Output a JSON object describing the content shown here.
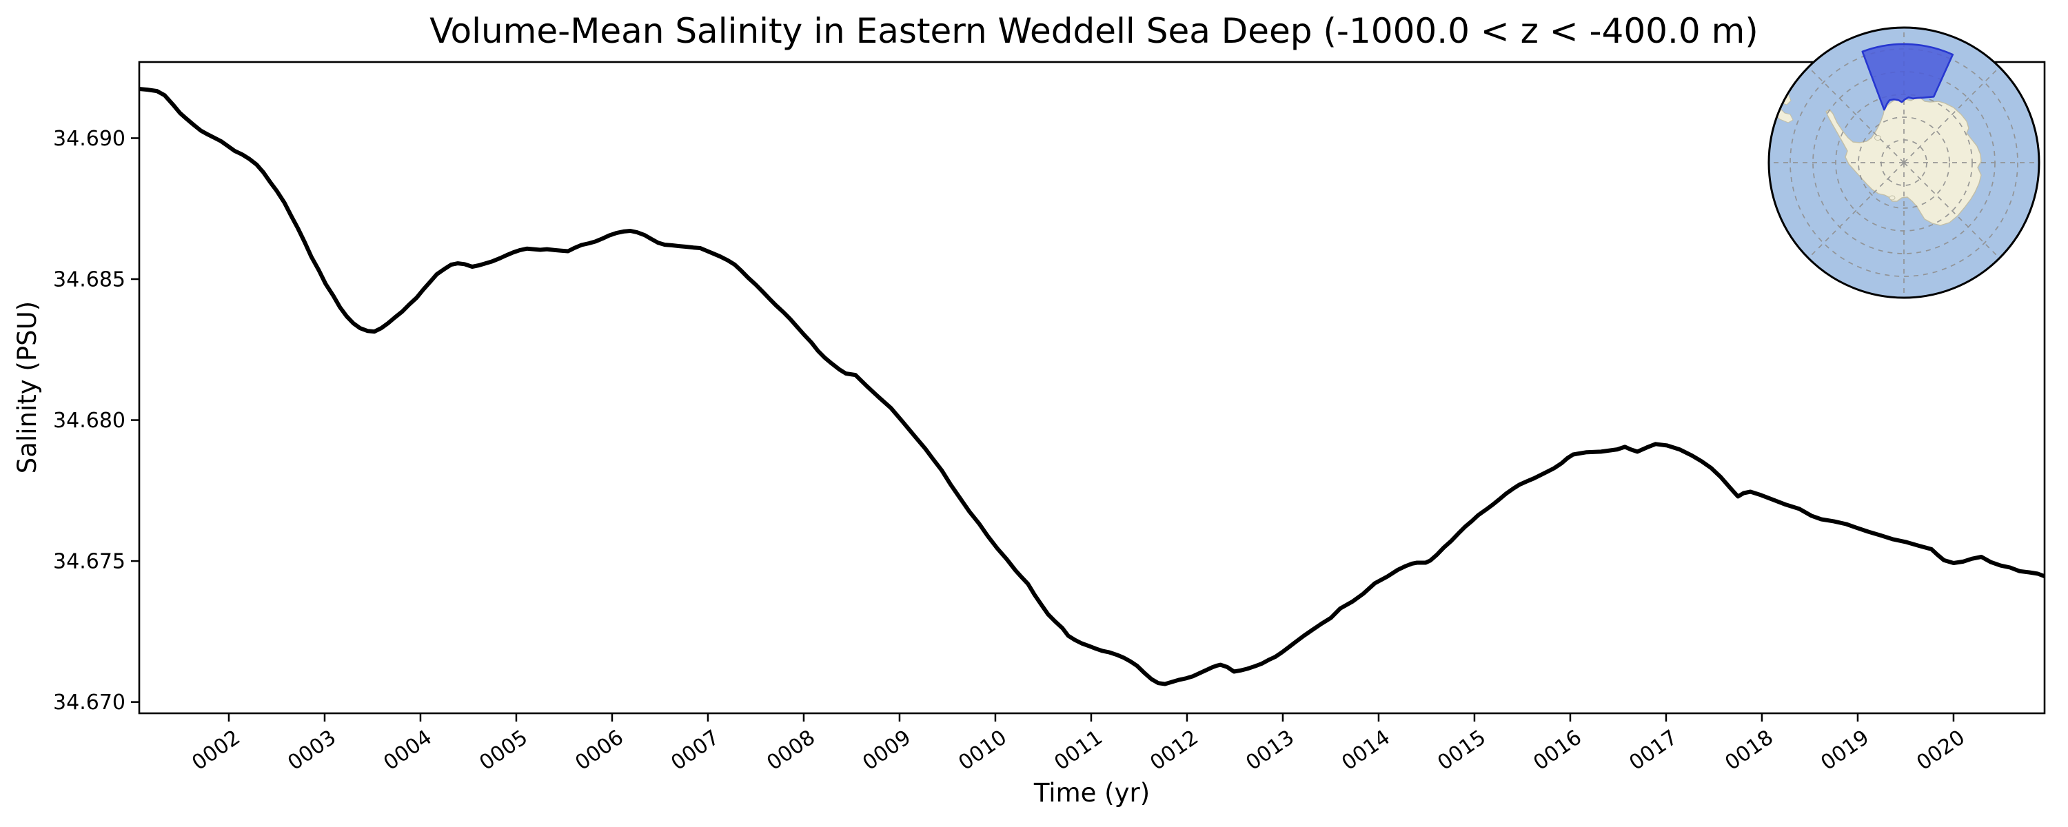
{
  "chart_data": {
    "type": "line",
    "title": "Volume-Mean Salinity in Eastern Weddell Sea Deep (-1000.0 < z < -400.0 m)",
    "xlabel": "Time (yr)",
    "ylabel": "Salinity (PSU)",
    "grid": false,
    "legend": "none",
    "xlim": [
      1.065,
      20.95
    ],
    "ylim": [
      34.6696,
      34.6927
    ],
    "x_ticks": [
      {
        "value": 2,
        "label": "0002"
      },
      {
        "value": 3,
        "label": "0003"
      },
      {
        "value": 4,
        "label": "0004"
      },
      {
        "value": 5,
        "label": "0005"
      },
      {
        "value": 6,
        "label": "0006"
      },
      {
        "value": 7,
        "label": "0007"
      },
      {
        "value": 8,
        "label": "0008"
      },
      {
        "value": 9,
        "label": "0009"
      },
      {
        "value": 10,
        "label": "0010"
      },
      {
        "value": 11,
        "label": "0011"
      },
      {
        "value": 12,
        "label": "0012"
      },
      {
        "value": 13,
        "label": "0013"
      },
      {
        "value": 14,
        "label": "0014"
      },
      {
        "value": 15,
        "label": "0015"
      },
      {
        "value": 16,
        "label": "0016"
      },
      {
        "value": 17,
        "label": "0017"
      },
      {
        "value": 18,
        "label": "0018"
      },
      {
        "value": 19,
        "label": "0019"
      },
      {
        "value": 20,
        "label": "0020"
      }
    ],
    "y_ticks": [
      {
        "value": 34.67,
        "label": "34.670"
      },
      {
        "value": 34.675,
        "label": "34.675"
      },
      {
        "value": 34.68,
        "label": "34.680"
      },
      {
        "value": 34.685,
        "label": "34.685"
      },
      {
        "value": 34.69,
        "label": "34.690"
      }
    ],
    "series": [
      {
        "name": "volume-mean salinity",
        "color": "#000000",
        "line_width": 6,
        "points": [
          [
            1.06,
            34.69175
          ],
          [
            1.15,
            34.69172
          ],
          [
            1.25,
            34.69167
          ],
          [
            1.33,
            34.69152
          ],
          [
            1.42,
            34.69118
          ],
          [
            1.49,
            34.69089
          ],
          [
            1.56,
            34.69068
          ],
          [
            1.63,
            34.69048
          ],
          [
            1.71,
            34.69026
          ],
          [
            1.78,
            34.69013
          ],
          [
            1.85,
            34.69001
          ],
          [
            1.92,
            34.68989
          ],
          [
            1.99,
            34.68972
          ],
          [
            2.06,
            34.68955
          ],
          [
            2.14,
            34.68942
          ],
          [
            2.21,
            34.68927
          ],
          [
            2.29,
            34.68906
          ],
          [
            2.36,
            34.68879
          ],
          [
            2.43,
            34.68845
          ],
          [
            2.5,
            34.68813
          ],
          [
            2.58,
            34.68771
          ],
          [
            2.65,
            34.68725
          ],
          [
            2.72,
            34.68681
          ],
          [
            2.79,
            34.68632
          ],
          [
            2.86,
            34.6858
          ],
          [
            2.94,
            34.68531
          ],
          [
            3.01,
            34.68483
          ],
          [
            3.09,
            34.68441
          ],
          [
            3.16,
            34.684
          ],
          [
            3.23,
            34.68368
          ],
          [
            3.3,
            34.68343
          ],
          [
            3.37,
            34.68326
          ],
          [
            3.45,
            34.68316
          ],
          [
            3.52,
            34.68314
          ],
          [
            3.59,
            34.68326
          ],
          [
            3.66,
            34.68343
          ],
          [
            3.73,
            34.68363
          ],
          [
            3.81,
            34.68385
          ],
          [
            3.88,
            34.68409
          ],
          [
            3.96,
            34.68434
          ],
          [
            4.03,
            34.68463
          ],
          [
            4.1,
            34.6849
          ],
          [
            4.17,
            34.68517
          ],
          [
            4.25,
            34.68536
          ],
          [
            4.32,
            34.68551
          ],
          [
            4.39,
            34.68556
          ],
          [
            4.46,
            34.68553
          ],
          [
            4.54,
            34.68544
          ],
          [
            4.61,
            34.68549
          ],
          [
            4.68,
            34.68556
          ],
          [
            4.75,
            34.68563
          ],
          [
            4.83,
            34.68574
          ],
          [
            4.9,
            34.68585
          ],
          [
            4.97,
            34.68595
          ],
          [
            5.04,
            34.68603
          ],
          [
            5.11,
            34.68608
          ],
          [
            5.18,
            34.68606
          ],
          [
            5.25,
            34.68604
          ],
          [
            5.32,
            34.68606
          ],
          [
            5.4,
            34.68603
          ],
          [
            5.47,
            34.68601
          ],
          [
            5.54,
            34.68599
          ],
          [
            5.61,
            34.68611
          ],
          [
            5.68,
            34.68621
          ],
          [
            5.76,
            34.68627
          ],
          [
            5.83,
            34.68634
          ],
          [
            5.9,
            34.68644
          ],
          [
            5.97,
            34.68655
          ],
          [
            6.05,
            34.68664
          ],
          [
            6.12,
            34.68669
          ],
          [
            6.19,
            34.68671
          ],
          [
            6.26,
            34.68666
          ],
          [
            6.34,
            34.68656
          ],
          [
            6.41,
            34.68642
          ],
          [
            6.48,
            34.68629
          ],
          [
            6.55,
            34.68622
          ],
          [
            6.62,
            34.6862
          ],
          [
            6.7,
            34.68617
          ],
          [
            6.77,
            34.68615
          ],
          [
            6.85,
            34.68612
          ],
          [
            6.92,
            34.6861
          ],
          [
            6.99,
            34.686
          ],
          [
            7.06,
            34.6859
          ],
          [
            7.13,
            34.6858
          ],
          [
            7.21,
            34.68566
          ],
          [
            7.28,
            34.68551
          ],
          [
            7.35,
            34.68529
          ],
          [
            7.42,
            34.68505
          ],
          [
            7.5,
            34.6848
          ],
          [
            7.57,
            34.68456
          ],
          [
            7.64,
            34.68431
          ],
          [
            7.71,
            34.68407
          ],
          [
            7.79,
            34.68382
          ],
          [
            7.86,
            34.68358
          ],
          [
            7.93,
            34.68331
          ],
          [
            8.0,
            34.68304
          ],
          [
            8.08,
            34.68275
          ],
          [
            8.15,
            34.68245
          ],
          [
            8.22,
            34.68221
          ],
          [
            8.29,
            34.68201
          ],
          [
            8.37,
            34.6818
          ],
          [
            8.44,
            34.68165
          ],
          [
            8.54,
            34.6816
          ],
          [
            8.66,
            34.6812
          ],
          [
            8.78,
            34.68082
          ],
          [
            8.91,
            34.68043
          ],
          [
            9.03,
            34.67995
          ],
          [
            9.15,
            34.67946
          ],
          [
            9.27,
            34.67898
          ],
          [
            9.34,
            34.67866
          ],
          [
            9.44,
            34.67822
          ],
          [
            9.53,
            34.67773
          ],
          [
            9.63,
            34.67724
          ],
          [
            9.73,
            34.67675
          ],
          [
            9.83,
            34.67633
          ],
          [
            9.92,
            34.67589
          ],
          [
            10.02,
            34.67545
          ],
          [
            10.12,
            34.67506
          ],
          [
            10.21,
            34.67467
          ],
          [
            10.26,
            34.67448
          ],
          [
            10.34,
            34.67419
          ],
          [
            10.41,
            34.6738
          ],
          [
            10.48,
            34.67345
          ],
          [
            10.55,
            34.67311
          ],
          [
            10.62,
            34.67287
          ],
          [
            10.7,
            34.67262
          ],
          [
            10.76,
            34.67235
          ],
          [
            10.83,
            34.6722
          ],
          [
            10.9,
            34.67208
          ],
          [
            10.98,
            34.67198
          ],
          [
            11.05,
            34.67189
          ],
          [
            11.12,
            34.67181
          ],
          [
            11.19,
            34.67176
          ],
          [
            11.27,
            34.67167
          ],
          [
            11.34,
            34.67157
          ],
          [
            11.41,
            34.67144
          ],
          [
            11.48,
            34.67128
          ],
          [
            11.55,
            34.67105
          ],
          [
            11.63,
            34.67081
          ],
          [
            11.7,
            34.67067
          ],
          [
            11.77,
            34.67064
          ],
          [
            11.84,
            34.67071
          ],
          [
            11.91,
            34.67078
          ],
          [
            11.99,
            34.67084
          ],
          [
            12.06,
            34.67091
          ],
          [
            12.13,
            34.67102
          ],
          [
            12.2,
            34.67113
          ],
          [
            12.27,
            34.67124
          ],
          [
            12.31,
            34.67129
          ],
          [
            12.35,
            34.67132
          ],
          [
            12.42,
            34.67124
          ],
          [
            12.49,
            34.67108
          ],
          [
            12.56,
            34.67112
          ],
          [
            12.63,
            34.67118
          ],
          [
            12.71,
            34.67127
          ],
          [
            12.78,
            34.67136
          ],
          [
            12.85,
            34.67149
          ],
          [
            12.92,
            34.6716
          ],
          [
            12.99,
            34.67176
          ],
          [
            13.06,
            34.67194
          ],
          [
            13.13,
            34.67212
          ],
          [
            13.22,
            34.67235
          ],
          [
            13.31,
            34.67256
          ],
          [
            13.4,
            34.67277
          ],
          [
            13.5,
            34.67298
          ],
          [
            13.6,
            34.67332
          ],
          [
            13.73,
            34.67357
          ],
          [
            13.84,
            34.67384
          ],
          [
            13.96,
            34.67421
          ],
          [
            14.09,
            34.67445
          ],
          [
            14.2,
            34.67469
          ],
          [
            14.28,
            34.67482
          ],
          [
            14.35,
            34.67491
          ],
          [
            14.4,
            34.67494
          ],
          [
            14.49,
            34.67494
          ],
          [
            14.54,
            34.67502
          ],
          [
            14.61,
            34.67523
          ],
          [
            14.68,
            34.67548
          ],
          [
            14.76,
            34.67572
          ],
          [
            14.83,
            34.67597
          ],
          [
            14.9,
            34.67621
          ],
          [
            14.97,
            34.67641
          ],
          [
            15.04,
            34.67663
          ],
          [
            15.12,
            34.67682
          ],
          [
            15.19,
            34.677
          ],
          [
            15.26,
            34.67719
          ],
          [
            15.33,
            34.67739
          ],
          [
            15.4,
            34.67756
          ],
          [
            15.47,
            34.67771
          ],
          [
            15.55,
            34.67783
          ],
          [
            15.62,
            34.67793
          ],
          [
            15.69,
            34.67805
          ],
          [
            15.76,
            34.67817
          ],
          [
            15.83,
            34.67829
          ],
          [
            15.91,
            34.67847
          ],
          [
            15.97,
            34.67865
          ],
          [
            16.03,
            34.67878
          ],
          [
            16.17,
            34.67886
          ],
          [
            16.32,
            34.67888
          ],
          [
            16.49,
            34.67896
          ],
          [
            16.57,
            34.67905
          ],
          [
            16.63,
            34.67896
          ],
          [
            16.7,
            34.67888
          ],
          [
            16.8,
            34.67903
          ],
          [
            16.89,
            34.67915
          ],
          [
            17.01,
            34.6791
          ],
          [
            17.14,
            34.67896
          ],
          [
            17.27,
            34.67874
          ],
          [
            17.37,
            34.67854
          ],
          [
            17.47,
            34.6783
          ],
          [
            17.57,
            34.67798
          ],
          [
            17.66,
            34.67763
          ],
          [
            17.71,
            34.67744
          ],
          [
            17.75,
            34.67729
          ],
          [
            17.81,
            34.67741
          ],
          [
            17.88,
            34.67746
          ],
          [
            17.99,
            34.67734
          ],
          [
            18.12,
            34.67717
          ],
          [
            18.25,
            34.677
          ],
          [
            18.39,
            34.67685
          ],
          [
            18.52,
            34.6766
          ],
          [
            18.62,
            34.67648
          ],
          [
            18.75,
            34.67641
          ],
          [
            18.88,
            34.67631
          ],
          [
            18.98,
            34.67619
          ],
          [
            19.11,
            34.67604
          ],
          [
            19.24,
            34.67591
          ],
          [
            19.37,
            34.67577
          ],
          [
            19.51,
            34.67567
          ],
          [
            19.64,
            34.67554
          ],
          [
            19.77,
            34.67542
          ],
          [
            19.83,
            34.67523
          ],
          [
            19.9,
            34.67503
          ],
          [
            20.0,
            34.67493
          ],
          [
            20.1,
            34.67498
          ],
          [
            20.19,
            34.67508
          ],
          [
            20.29,
            34.67515
          ],
          [
            20.39,
            34.67496
          ],
          [
            20.49,
            34.67484
          ],
          [
            20.59,
            34.67477
          ],
          [
            20.69,
            34.67464
          ],
          [
            20.79,
            34.6746
          ],
          [
            20.88,
            34.67455
          ],
          [
            20.95,
            34.67446
          ]
        ]
      }
    ],
    "inset_map": {
      "kind": "south-polar-stereographic",
      "highlighted_region": "Eastern Weddell Sea",
      "ocean_color": "#a9c4e5",
      "land_color": "#f1eeda",
      "coast_color": "#c2bfa8",
      "region_fill": "#4c5ddb",
      "region_edge": "#2737d0",
      "graticule_color": "#8f8f8f",
      "border_color": "#000000"
    }
  }
}
